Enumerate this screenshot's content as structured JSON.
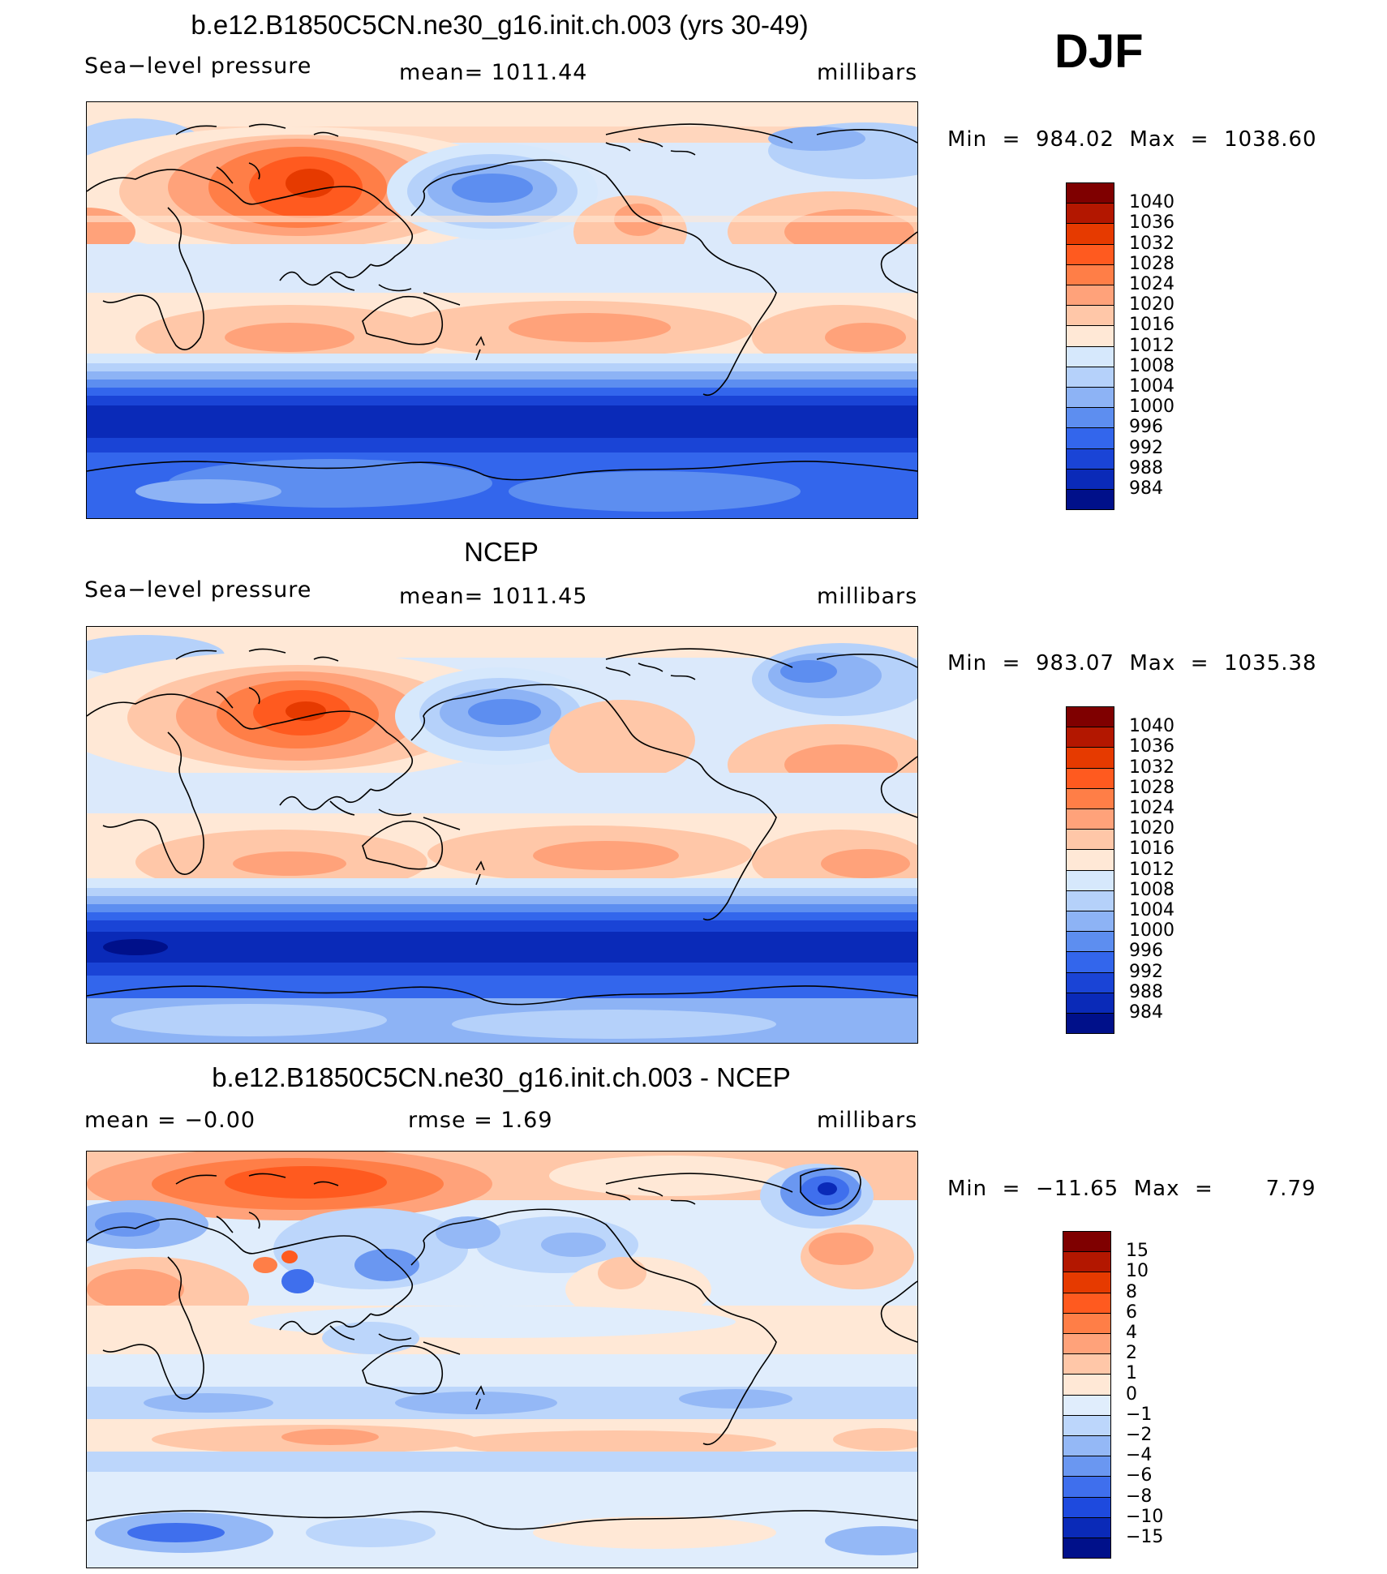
{
  "season": "DJF",
  "panels": [
    {
      "id": "model",
      "title": "b.e12.B1850C5CN.ne30_g16.init.ch.003 (yrs 30-49)",
      "left_label": "Sea−level pressure",
      "center_label": "mean=  1011.44",
      "right_label": "millibars",
      "minmax": "Min  =  984.02  Max  =  1038.60",
      "colorbar": {
        "labels": [
          "1040",
          "1036",
          "1032",
          "1028",
          "1024",
          "1020",
          "1016",
          "1012",
          "1008",
          "1004",
          "1000",
          "996",
          "992",
          "988",
          "984"
        ],
        "colors": [
          "#7f0000",
          "#b31700",
          "#e63a00",
          "#ff5a1f",
          "#ff7e47",
          "#ffa27a",
          "#ffc7a8",
          "#ffe8d6",
          "#d6e8fc",
          "#b5d1fa",
          "#8db3f5",
          "#5d8ef0",
          "#3366ec",
          "#1a44d6",
          "#0a2ab8",
          "#00108a"
        ]
      }
    },
    {
      "id": "obs",
      "title": "NCEP",
      "left_label": "Sea−level pressure",
      "center_label": "mean=  1011.45",
      "right_label": "millibars",
      "minmax": "Min  =  983.07  Max  =  1035.38",
      "colorbar": {
        "labels": [
          "1040",
          "1036",
          "1032",
          "1028",
          "1024",
          "1020",
          "1016",
          "1012",
          "1008",
          "1004",
          "1000",
          "996",
          "992",
          "988",
          "984"
        ],
        "colors": [
          "#7f0000",
          "#b31700",
          "#e63a00",
          "#ff5a1f",
          "#ff7e47",
          "#ffa27a",
          "#ffc7a8",
          "#ffe8d6",
          "#d6e8fc",
          "#b5d1fa",
          "#8db3f5",
          "#5d8ef0",
          "#3366ec",
          "#1a44d6",
          "#0a2ab8",
          "#00108a"
        ]
      }
    },
    {
      "id": "diff",
      "title": "b.e12.B1850C5CN.ne30_g16.init.ch.003 - NCEP",
      "left_label": "mean  =    −0.00",
      "center_label": "rmse  =      1.69",
      "right_label": "millibars",
      "minmax": "Min  =  −11.65  Max  =       7.79",
      "colorbar": {
        "labels": [
          "15",
          "10",
          "8",
          "6",
          "4",
          "2",
          "1",
          "0",
          "−1",
          "−2",
          "−4",
          "−6",
          "−8",
          "−10",
          "−15"
        ],
        "colors": [
          "#7f0000",
          "#b31700",
          "#e63a00",
          "#ff5a1f",
          "#ff7e47",
          "#ffa27a",
          "#ffc7a8",
          "#ffe8d6",
          "#e0edfc",
          "#bcd6fb",
          "#94b8f6",
          "#6a97f1",
          "#3f6fed",
          "#1e4ade",
          "#0a2ab8",
          "#00108a"
        ]
      }
    }
  ]
}
